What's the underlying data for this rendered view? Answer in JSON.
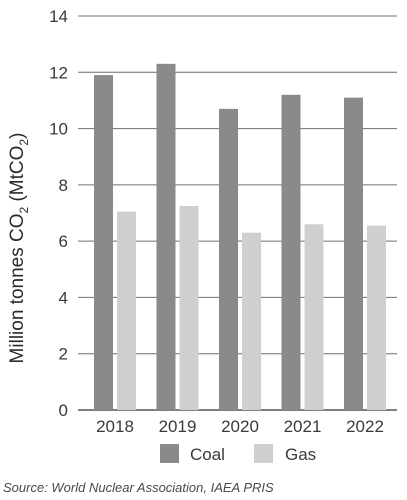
{
  "chart_data": {
    "type": "bar",
    "categories": [
      "2018",
      "2019",
      "2020",
      "2021",
      "2022"
    ],
    "series": [
      {
        "name": "Coal",
        "values": [
          11.9,
          12.3,
          10.7,
          11.2,
          11.1
        ],
        "color": "#8a8a8a"
      },
      {
        "name": "Gas",
        "values": [
          7.05,
          7.25,
          6.3,
          6.6,
          6.55
        ],
        "color": "#cfcfcf"
      }
    ],
    "ylim": [
      0,
      14
    ],
    "yticks": [
      0,
      2,
      4,
      6,
      8,
      10,
      12,
      14
    ],
    "ylabel": "Million tonnes CO",
    "ylabel_sub": "2",
    "ylabel_rest": " (MtCO",
    "ylabel_sub2": "2",
    "ylabel_end": ")",
    "grid": true,
    "legend_position": "bottom",
    "source": "Source: World Nuclear Association, IAEA PRIS"
  }
}
